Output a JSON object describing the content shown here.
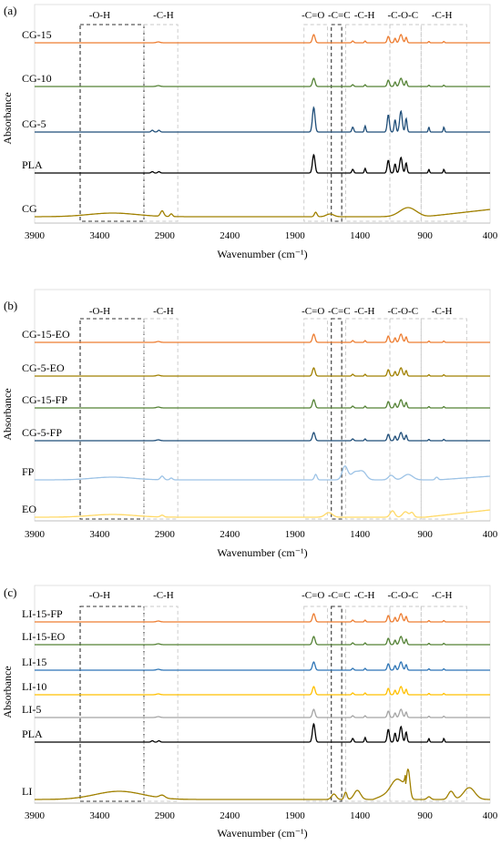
{
  "chart_data": [
    {
      "type": "line",
      "panel_label": "(a)",
      "xlabel": "Wavenumber (cm⁻¹)",
      "ylabel": "Absorbance",
      "xlim": [
        3900,
        400
      ],
      "x_reversed": true,
      "xticks": [
        "3900",
        "3400",
        "2900",
        "2400",
        "1900",
        "1400",
        "900",
        "400"
      ],
      "region_labels": [
        "-O-H",
        "-C-H",
        "-C=O",
        "-C=C",
        "-C-H",
        "-C-O-C",
        "-C-H"
      ],
      "series": [
        {
          "name": "CG-15",
          "color": "#ED7D31",
          "style": "blend"
        },
        {
          "name": "CG-10",
          "color": "#548235",
          "style": "blend"
        },
        {
          "name": "CG-5",
          "color": "#1F4E79",
          "style": "pla",
          "scale": 1.35
        },
        {
          "name": "PLA",
          "color": "#000000",
          "style": "pla"
        },
        {
          "name": "CG",
          "color": "#A08000",
          "style": "cg"
        }
      ]
    },
    {
      "type": "line",
      "panel_label": "(b)",
      "xlabel": "Wavenumber (cm⁻¹)",
      "ylabel": "Absorbance",
      "xlim": [
        3900,
        400
      ],
      "x_reversed": true,
      "xticks": [
        "3900",
        "3400",
        "2900",
        "2400",
        "1900",
        "1400",
        "900",
        "400"
      ],
      "region_labels": [
        "-O-H",
        "-C-H",
        "-C=O",
        "-C=C",
        "-C-H",
        "-C-O-C",
        "-C-H"
      ],
      "series": [
        {
          "name": "CG-15-EO",
          "color": "#ED7D31",
          "style": "blend"
        },
        {
          "name": "CG-5-EO",
          "color": "#A08000",
          "style": "blend"
        },
        {
          "name": "CG-15-FP",
          "color": "#548235",
          "style": "blend"
        },
        {
          "name": "CG-5-FP",
          "color": "#1F4E79",
          "style": "blend"
        },
        {
          "name": "FP",
          "color": "#9DC3E6",
          "style": "fp"
        },
        {
          "name": "EO",
          "color": "#FFD966",
          "style": "eo"
        }
      ]
    },
    {
      "type": "line",
      "panel_label": "(c)",
      "xlabel": "Wavenumber (cm⁻¹)",
      "ylabel": "Absorbance",
      "xlim": [
        3900,
        400
      ],
      "x_reversed": true,
      "xticks": [
        "3900",
        "3400",
        "2900",
        "2400",
        "1900",
        "1400",
        "900",
        "400"
      ],
      "region_labels": [
        "-O-H",
        "-C-H",
        "-C=O",
        "-C=C",
        "-C-H",
        "-C-O-C",
        "-C-H"
      ],
      "series": [
        {
          "name": "LI-15-FP",
          "color": "#ED7D31",
          "style": "blend"
        },
        {
          "name": "LI-15-EO",
          "color": "#548235",
          "style": "blend"
        },
        {
          "name": "LI-15",
          "color": "#2E75B6",
          "style": "blend"
        },
        {
          "name": "LI-10",
          "color": "#FFC000",
          "style": "blend"
        },
        {
          "name": "LI-5",
          "color": "#A5A5A5",
          "style": "blend"
        },
        {
          "name": "PLA",
          "color": "#000000",
          "style": "pla"
        },
        {
          "name": "LI",
          "color": "#A08000",
          "style": "li"
        }
      ]
    }
  ]
}
